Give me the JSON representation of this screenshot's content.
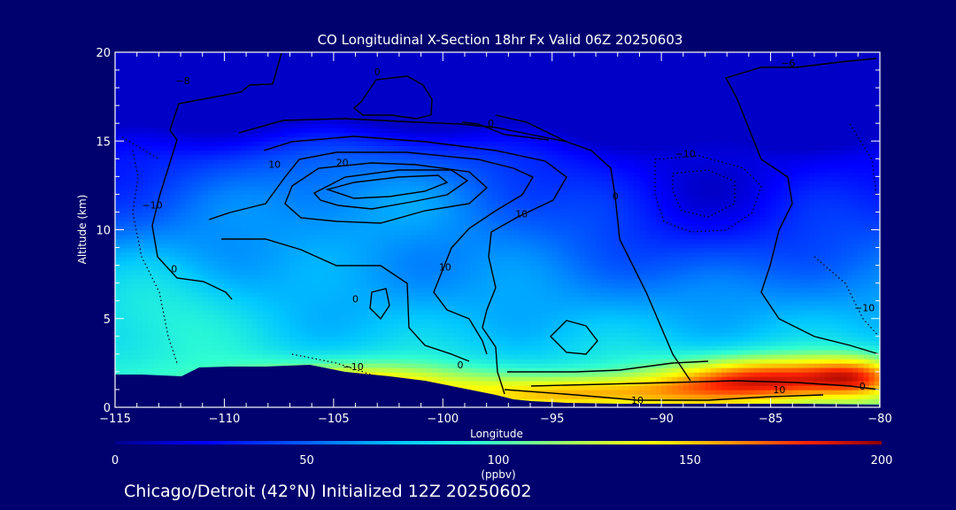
{
  "title": "CO Longitudinal X-Section 18hr  Fx Valid 06Z 20250603",
  "footer": "Chicago/Detroit (42°N) Initialized 12Z 20250602",
  "colorbar": {
    "unit_label": "(ppbv)",
    "min": 0,
    "max": 200,
    "ticks": [
      "0",
      "50",
      "100",
      "150",
      "200"
    ]
  },
  "colors": {
    "background": "#00006e",
    "text": "#ffffff",
    "contour": "#000000",
    "terrain": "#00006e"
  },
  "chart_data": {
    "type": "heatmap",
    "title": "CO Longitudinal X-Section 18hr  Fx Valid 06Z 20250603",
    "xlabel": "Longitude",
    "ylabel": "Altitude (km)",
    "xlim": [
      -115,
      -80
    ],
    "ylim": [
      0,
      20
    ],
    "x_ticks": [
      "−115",
      "−110",
      "−105",
      "−100",
      "−95",
      "−90",
      "−85",
      "−80"
    ],
    "y_ticks": [
      "0",
      "5",
      "10",
      "15",
      "20"
    ],
    "colorbar_range": [
      0,
      200
    ],
    "colorbar_unit": "(ppbv)",
    "contour_labels": [
      {
        "text": "0",
        "lon": -103,
        "alt": 18.7
      },
      {
        "text": "0",
        "lon": -97.8,
        "alt": 15.8
      },
      {
        "text": "−6",
        "lon": -84.2,
        "alt": 19.2
      },
      {
        "text": "−8",
        "lon": -111.9,
        "alt": 18.2
      },
      {
        "text": "−10",
        "lon": -113.3,
        "alt": 11.2
      },
      {
        "text": "10",
        "lon": -107.7,
        "alt": 13.5
      },
      {
        "text": "20",
        "lon": -104.6,
        "alt": 13.6
      },
      {
        "text": "10",
        "lon": -96.4,
        "alt": 10.7
      },
      {
        "text": "10",
        "lon": -99.9,
        "alt": 7.7
      },
      {
        "text": "0",
        "lon": -104,
        "alt": 5.9
      },
      {
        "text": "0",
        "lon": -92.1,
        "alt": 11.7
      },
      {
        "text": "−10",
        "lon": -88.9,
        "alt": 14.1
      },
      {
        "text": "0",
        "lon": -112.3,
        "alt": 7.6
      },
      {
        "text": "−10",
        "lon": -104.1,
        "alt": 2.1
      },
      {
        "text": "0",
        "lon": -99.2,
        "alt": 2.2
      },
      {
        "text": "10",
        "lon": -91.1,
        "alt": 0.2
      },
      {
        "text": "10",
        "lon": -84.6,
        "alt": 0.8
      },
      {
        "text": "0",
        "lon": -80.8,
        "alt": 1.0
      },
      {
        "text": "−10",
        "lon": -80.7,
        "alt": 5.4
      }
    ]
  }
}
